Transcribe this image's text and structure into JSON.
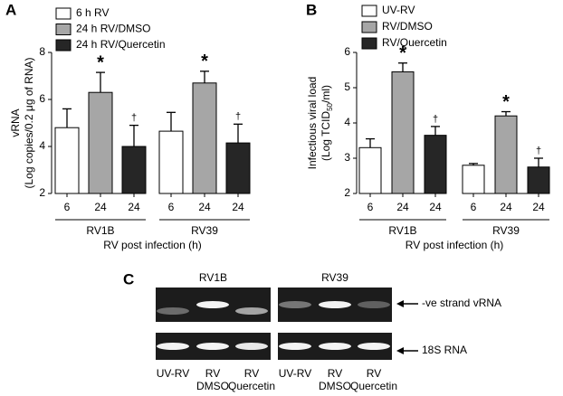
{
  "chart_data": [
    {
      "type": "bar",
      "panel": "A",
      "ylabel": [
        "vRNA",
        "(Log copies/0.2 μg of RNA)"
      ],
      "xlabel": "RV post infection (h)",
      "groups": [
        "RV1B",
        "RV39"
      ],
      "ylim": [
        2,
        8
      ],
      "yticks": [
        2,
        4,
        6,
        8
      ],
      "series": [
        {
          "name": "6 h RV",
          "color": "#ffffff",
          "tick_label": "6",
          "values": [
            4.8,
            4.65
          ],
          "errors": [
            0.8,
            0.8
          ]
        },
        {
          "name": "24 h RV/DMSO",
          "color": "#a6a6a6",
          "tick_label": "24",
          "values": [
            6.3,
            6.7
          ],
          "errors": [
            0.85,
            0.5
          ],
          "marker": "*"
        },
        {
          "name": "24 h RV/Quercetin",
          "color": "#262626",
          "tick_label": "24",
          "values": [
            4.0,
            4.15
          ],
          "errors": [
            0.9,
            0.8
          ],
          "marker": "†"
        }
      ]
    },
    {
      "type": "bar",
      "panel": "B",
      "ylabel": [
        "Infectious viral load",
        {
          "before": "(Log TCID",
          "sub": "50",
          "after": "/ml)"
        }
      ],
      "xlabel": "RV post infection (h)",
      "groups": [
        "RV1B",
        "RV39"
      ],
      "ylim": [
        2,
        6
      ],
      "yticks": [
        2,
        3,
        4,
        5,
        6
      ],
      "series": [
        {
          "name": "UV-RV",
          "color": "#ffffff",
          "tick_label": "6",
          "values": [
            3.3,
            2.8
          ],
          "errors": [
            0.25,
            0.05
          ]
        },
        {
          "name": "RV/DMSO",
          "color": "#a6a6a6",
          "tick_label": "24",
          "values": [
            5.45,
            4.2
          ],
          "errors": [
            0.25,
            0.12
          ],
          "marker": "*"
        },
        {
          "name": "RV/Quercetin",
          "color": "#262626",
          "tick_label": "24",
          "values": [
            3.65,
            2.75
          ],
          "errors": [
            0.25,
            0.25
          ],
          "marker": "†"
        }
      ]
    }
  ],
  "panel_c": {
    "panel": "C",
    "gels": [
      "RV1B",
      "RV39"
    ],
    "bands": [
      "-ve strand vRNA",
      "18S RNA"
    ],
    "lanes": [
      [
        "UV-RV"
      ],
      [
        "RV",
        "DMSO"
      ],
      [
        "RV",
        "Quercetin"
      ]
    ]
  }
}
